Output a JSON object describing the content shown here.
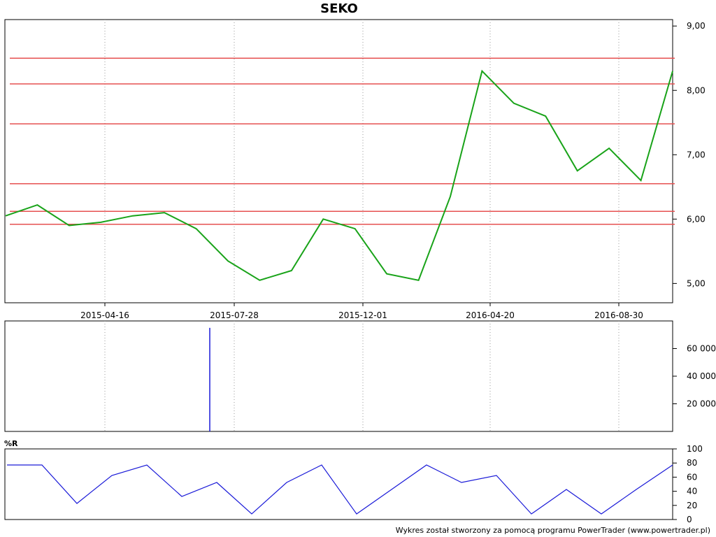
{
  "chart_data": {
    "title": "SEKO",
    "type": "line",
    "x_labels": [
      "2015-04-16",
      "2015-07-28",
      "2015-12-01",
      "2016-04-20",
      "2016-08-30"
    ],
    "price_ticks": [
      "9,00",
      "8,00",
      "7,00",
      "6,00",
      "5,00"
    ],
    "price_ylim": [
      4.7,
      9.1
    ],
    "price_series": [
      {
        "name": "",
        "x": [
          "2015-01",
          "2015-02",
          "2015-03",
          "2015-04",
          "2015-05",
          "2015-06",
          "2015-07",
          "2015-08",
          "2015-09",
          "2015-10",
          "2015-11",
          "2015-12",
          "2016-01",
          "2016-02",
          "2016-03",
          "2016-04",
          "2016-05",
          "2016-06",
          "2016-07",
          "2016-08",
          "2016-09",
          "2016-10"
        ],
        "y": [
          6.05,
          6.22,
          5.9,
          5.95,
          6.05,
          6.1,
          5.85,
          5.35,
          5.05,
          5.2,
          6.0,
          5.85,
          5.15,
          5.05,
          6.35,
          8.3,
          7.8,
          7.6,
          6.75,
          7.1,
          6.6,
          8.3
        ]
      }
    ],
    "horizontal_levels": [
      8.5,
      8.1,
      7.48,
      6.55,
      6.12,
      5.92
    ],
    "volume_ticks": [
      "60 000",
      "40 000",
      "20 000"
    ],
    "volume_ylim": [
      0,
      80000
    ],
    "volume_spike": 75000,
    "wr_ticks": [
      "100",
      "80",
      "60",
      "40",
      "20",
      "0"
    ],
    "wr_label": "%R",
    "footer": "Wykres został stworzony za pomocą programu PowerTrader (www.powertrader.pl)"
  }
}
